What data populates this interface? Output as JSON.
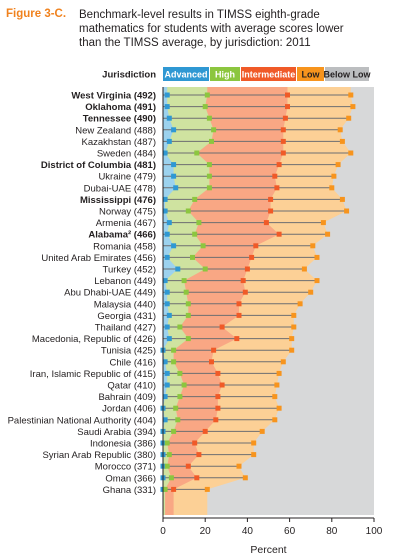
{
  "figure": {
    "label": "Figure 3-C.",
    "title_lines": [
      "Benchmark-level results in TIMSS eighth-grade",
      "mathematics for students with average scores lower",
      "than the TIMSS average, by jurisdiction: 2011"
    ]
  },
  "colors": {
    "advanced": "#2f98d3",
    "high": "#8cc63f",
    "intermediate": "#f05a28",
    "low": "#f7941d",
    "below_low": "#bcbec0",
    "area_advanced": "#9cd2ee",
    "area_high": "#cfe3a0",
    "area_intermediate": "#f9a784",
    "area_low": "#fcd096",
    "area_below_low": "#d7d8d9",
    "connector": "#6d6e71",
    "title_accent": "#f0821e"
  },
  "chart_data": {
    "type": "line",
    "header_label": "Jurisdiction",
    "xlabel": "Percent",
    "xlim": [
      0,
      100
    ],
    "xticks": [
      0,
      20,
      40,
      60,
      80,
      100
    ],
    "legend_position": "top",
    "legend": [
      "Advanced",
      "High",
      "Intermediate",
      "Low",
      "Below Low"
    ],
    "jurisdictions": [
      {
        "label": "West Virginia (492)",
        "bold": true,
        "values": [
          2,
          21,
          59,
          89
        ]
      },
      {
        "label": "Oklahoma (491)",
        "bold": true,
        "values": [
          2,
          20,
          59,
          90
        ]
      },
      {
        "label": "Tennessee (490)",
        "bold": true,
        "values": [
          3,
          22,
          58,
          88
        ]
      },
      {
        "label": "New Zealand (488)",
        "bold": false,
        "values": [
          5,
          24,
          57,
          84
        ]
      },
      {
        "label": "Kazakhstan (487)",
        "bold": false,
        "values": [
          3,
          23,
          57,
          85
        ]
      },
      {
        "label": "Sweden (484)",
        "bold": false,
        "values": [
          1,
          16,
          57,
          89
        ]
      },
      {
        "label": "District of Columbia (481)",
        "bold": true,
        "values": [
          5,
          22,
          55,
          83
        ]
      },
      {
        "label": "Ukraine (479)",
        "bold": false,
        "values": [
          5,
          22,
          53,
          81
        ]
      },
      {
        "label": "Dubai-UAE (478)",
        "bold": false,
        "values": [
          6,
          22,
          54,
          80
        ]
      },
      {
        "label": "Mississippi (476)",
        "bold": true,
        "values": [
          1,
          15,
          51,
          85
        ]
      },
      {
        "label": "Norway (475)",
        "bold": false,
        "values": [
          1,
          12,
          51,
          87
        ]
      },
      {
        "label": "Armenia (467)",
        "bold": false,
        "values": [
          3,
          17,
          49,
          76
        ]
      },
      {
        "label": "Alabama² (466)",
        "bold": true,
        "values": [
          2,
          15,
          55,
          78
        ]
      },
      {
        "label": "Romania (458)",
        "bold": false,
        "values": [
          5,
          19,
          44,
          71
        ]
      },
      {
        "label": "United Arab Emirates (456)",
        "bold": false,
        "values": [
          2,
          14,
          42,
          73
        ]
      },
      {
        "label": "Turkey (452)",
        "bold": false,
        "values": [
          7,
          20,
          40,
          67
        ]
      },
      {
        "label": "Lebanon (449)",
        "bold": false,
        "values": [
          1,
          10,
          38,
          73
        ]
      },
      {
        "label": "Abu Dhabi-UAE (449)",
        "bold": false,
        "values": [
          2,
          11,
          39,
          70
        ]
      },
      {
        "label": "Malaysia (440)",
        "bold": false,
        "values": [
          2,
          12,
          36,
          65
        ]
      },
      {
        "label": "Georgia (431)",
        "bold": false,
        "values": [
          3,
          12,
          36,
          62
        ]
      },
      {
        "label": "Thailand (427)",
        "bold": false,
        "values": [
          2,
          8,
          28,
          62
        ]
      },
      {
        "label": "Macedonia, Republic of (426)",
        "bold": false,
        "values": [
          3,
          12,
          35,
          61
        ]
      },
      {
        "label": "Tunisia (425)",
        "bold": false,
        "values": [
          0,
          5,
          24,
          61
        ]
      },
      {
        "label": "Chile (416)",
        "bold": false,
        "values": [
          1,
          5,
          23,
          57
        ]
      },
      {
        "label": "Iran, Islamic Republic of (415)",
        "bold": false,
        "values": [
          2,
          8,
          26,
          55
        ]
      },
      {
        "label": "Qatar (410)",
        "bold": false,
        "values": [
          2,
          10,
          28,
          54
        ]
      },
      {
        "label": "Bahrain (409)",
        "bold": false,
        "values": [
          1,
          8,
          26,
          53
        ]
      },
      {
        "label": "Jordan (406)",
        "bold": false,
        "values": [
          0,
          6,
          26,
          55
        ]
      },
      {
        "label": "Palestinian National Authority (404)",
        "bold": false,
        "values": [
          1,
          7,
          25,
          53
        ]
      },
      {
        "label": "Saudi Arabia (394)",
        "bold": false,
        "values": [
          0,
          5,
          20,
          47
        ]
      },
      {
        "label": "Indonesia (386)",
        "bold": false,
        "values": [
          0,
          2,
          15,
          43
        ]
      },
      {
        "label": "Syrian Arab Republic (380)",
        "bold": false,
        "values": [
          0,
          3,
          17,
          43
        ]
      },
      {
        "label": "Morocco (371)",
        "bold": false,
        "values": [
          0,
          2,
          12,
          36
        ]
      },
      {
        "label": "Oman (366)",
        "bold": false,
        "values": [
          0,
          4,
          16,
          39
        ]
      },
      {
        "label": "Ghana (331)",
        "bold": false,
        "values": [
          0,
          1,
          5,
          21
        ]
      }
    ]
  }
}
